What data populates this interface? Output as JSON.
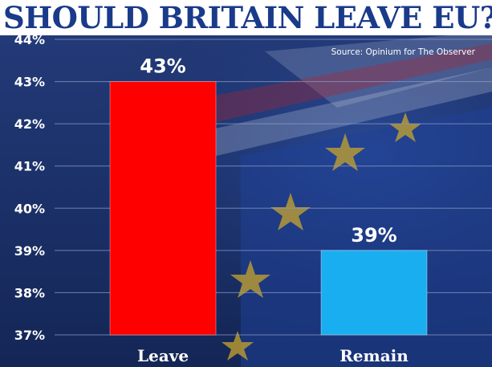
{
  "title": "SHOULD BRITAIN LEAVE EU?",
  "source": "Source: Opinium for The Observer",
  "colors": {
    "leave": "#ff0000",
    "remain": "#19aef0",
    "title": "#1a3a8a",
    "background": "#1c3270",
    "gridline": "#8d9bc6"
  },
  "chart_data": {
    "type": "bar",
    "categories": [
      "Leave",
      "Remain"
    ],
    "values": [
      43,
      39
    ],
    "data_labels": [
      "43%",
      "39%"
    ],
    "colors": [
      "#ff0000",
      "#19aef0"
    ],
    "ylim": [
      37,
      44
    ],
    "yticks": [
      37,
      38,
      39,
      40,
      41,
      42,
      43,
      44
    ],
    "ytick_labels": [
      "37%",
      "38%",
      "39%",
      "40%",
      "41%",
      "42%",
      "43%",
      "44%"
    ],
    "grid": true,
    "legend": "none"
  }
}
